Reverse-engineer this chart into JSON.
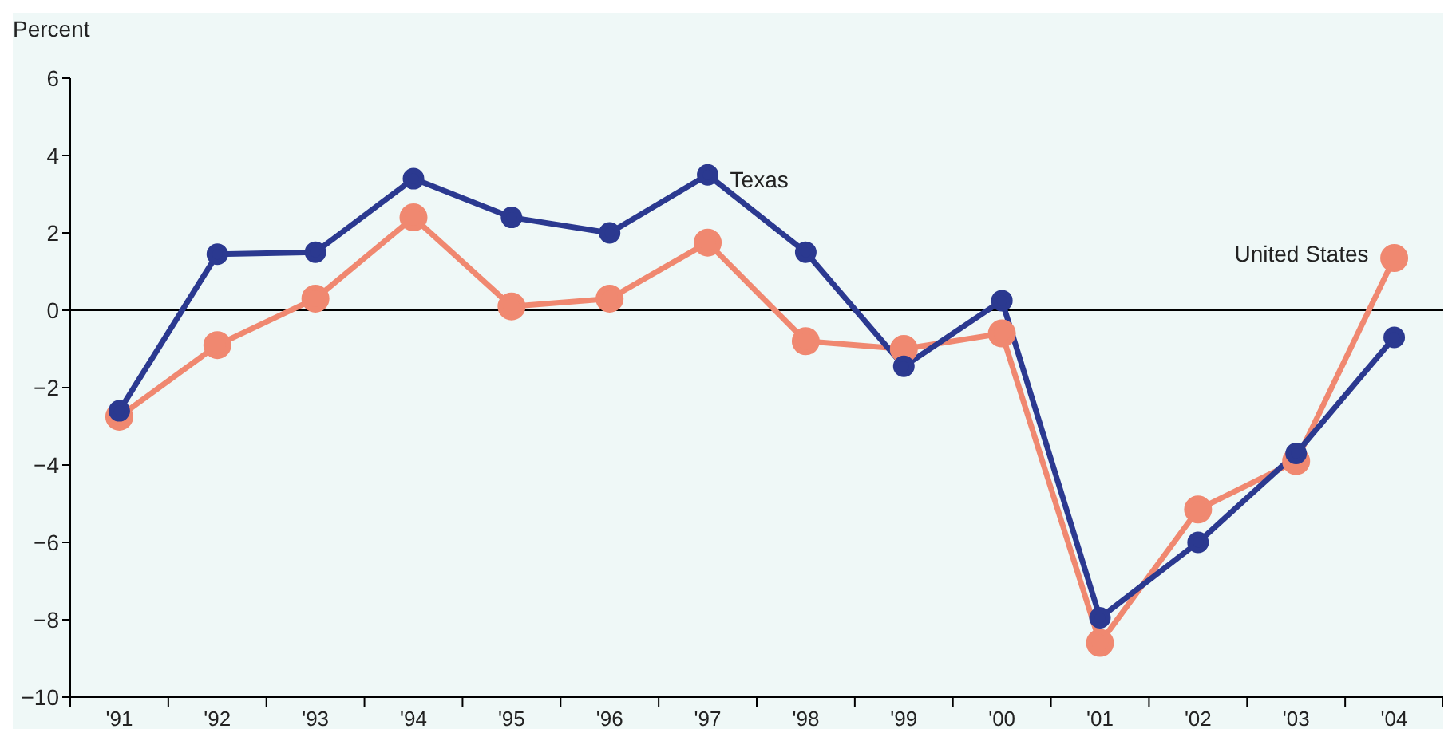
{
  "chart_data": {
    "type": "line",
    "ylabel": "Percent",
    "categories": [
      "'91",
      "'92",
      "'93",
      "'94",
      "'95",
      "'96",
      "'97",
      "'98",
      "'99",
      "'00",
      "'01",
      "'02",
      "'03",
      "'04"
    ],
    "series": [
      {
        "name": "Texas",
        "color": "#2b3990",
        "values": [
          -2.6,
          1.45,
          1.5,
          3.4,
          2.4,
          2.0,
          3.5,
          1.5,
          -1.45,
          0.25,
          -7.95,
          -6.0,
          -3.7,
          -0.7
        ]
      },
      {
        "name": "United States",
        "color": "#f08870",
        "values": [
          -2.75,
          -0.9,
          0.3,
          2.4,
          0.1,
          0.3,
          1.75,
          -0.8,
          -1.0,
          -0.6,
          -8.6,
          -5.15,
          -3.9,
          1.35
        ]
      }
    ],
    "ylim": [
      -10,
      6
    ],
    "yticks": [
      -10,
      -8,
      -6,
      -4,
      -2,
      0,
      2,
      4,
      6
    ],
    "ref_lines": [
      {
        "axis": "y",
        "value": 0,
        "color": "#000000"
      }
    ],
    "grid": false,
    "legend": false,
    "marker": "circle",
    "line_style": "solid"
  }
}
